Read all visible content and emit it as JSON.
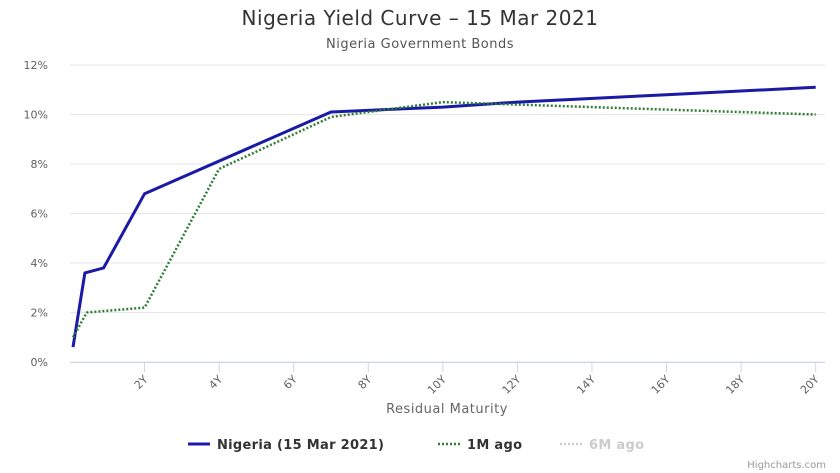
{
  "chart_data": {
    "type": "line",
    "title": "Nigeria Yield Curve – 15 Mar 2021",
    "subtitle": "Nigeria Government Bonds",
    "xlabel": "Residual Maturity",
    "ylabel": "",
    "xlim": [
      0,
      20.25
    ],
    "ylim": [
      0,
      12
    ],
    "x_ticks": [
      {
        "value": 2,
        "label": "2Y"
      },
      {
        "value": 4,
        "label": "4Y"
      },
      {
        "value": 6,
        "label": "6Y"
      },
      {
        "value": 8,
        "label": "8Y"
      },
      {
        "value": 10,
        "label": "10Y"
      },
      {
        "value": 12,
        "label": "12Y"
      },
      {
        "value": 14,
        "label": "14Y"
      },
      {
        "value": 16,
        "label": "16Y"
      },
      {
        "value": 18,
        "label": "18Y"
      },
      {
        "value": 20,
        "label": "20Y"
      }
    ],
    "y_ticks": [
      {
        "value": 0,
        "label": "0%"
      },
      {
        "value": 2,
        "label": "2%"
      },
      {
        "value": 4,
        "label": "4%"
      },
      {
        "value": 6,
        "label": "6%"
      },
      {
        "value": 8,
        "label": "8%"
      },
      {
        "value": 10,
        "label": "10%"
      },
      {
        "value": 12,
        "label": "12%"
      }
    ],
    "grid": "horizontal",
    "legend_position": "bottom-center",
    "series": [
      {
        "name": "Nigeria (15 Mar 2021)",
        "color": "#1a1aa6",
        "style": "solid",
        "visible": true,
        "points": [
          [
            0.08,
            0.6
          ],
          [
            0.4,
            3.6
          ],
          [
            0.9,
            3.8
          ],
          [
            2.0,
            6.8
          ],
          [
            7.0,
            10.1
          ],
          [
            10.0,
            10.3
          ],
          [
            12.0,
            10.5
          ],
          [
            16.0,
            10.8
          ],
          [
            20.0,
            11.1
          ]
        ]
      },
      {
        "name": "1M ago",
        "color": "#2e7d32",
        "style": "dotted",
        "visible": true,
        "points": [
          [
            0.08,
            1.0
          ],
          [
            0.45,
            2.0
          ],
          [
            2.0,
            2.2
          ],
          [
            4.0,
            7.8
          ],
          [
            7.0,
            9.9
          ],
          [
            10.0,
            10.5
          ],
          [
            12.0,
            10.4
          ],
          [
            16.0,
            10.2
          ],
          [
            20.0,
            10.0
          ]
        ]
      },
      {
        "name": "6M ago",
        "color": "#cccccc",
        "style": "dotted",
        "visible": false,
        "points": []
      }
    ]
  },
  "credits": "Highcharts.com"
}
